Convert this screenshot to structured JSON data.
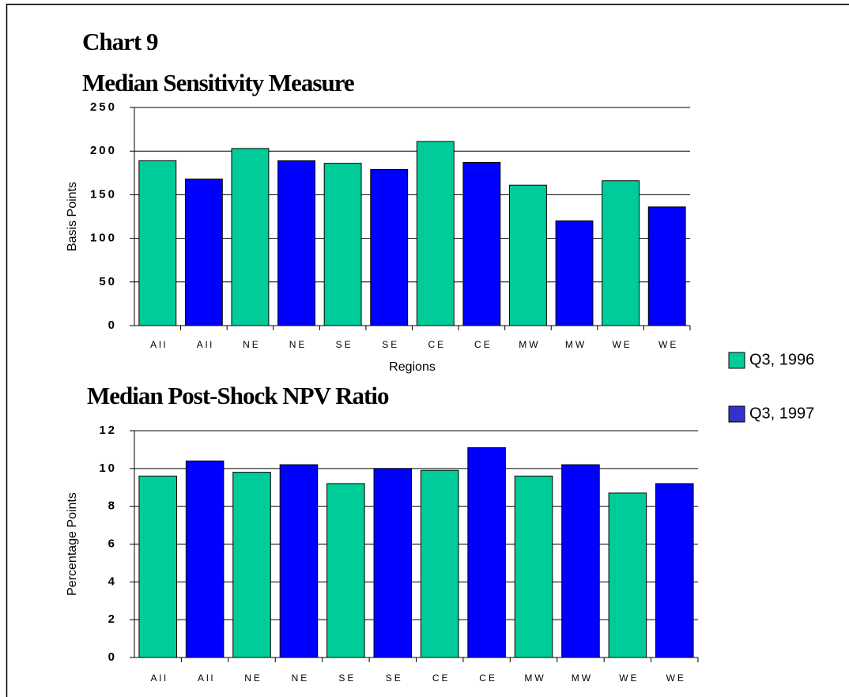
{
  "title": "Chart 9",
  "legend": [
    {
      "name": "Q3, 1996",
      "color": "#00cc99"
    },
    {
      "name": "Q3, 1997",
      "color": "#3333cc"
    }
  ],
  "chart_data": [
    {
      "type": "bar",
      "title": "Median Sensitivity Measure",
      "x_label": "Regions",
      "y_label": "Basis Points",
      "categories": [
        "All",
        "All",
        "NE",
        "NE",
        "SE",
        "SE",
        "CE",
        "CE",
        "MW",
        "MW",
        "WE",
        "WE"
      ],
      "values": [
        189,
        168,
        203,
        189,
        186,
        179,
        211,
        187,
        161,
        120,
        166,
        136
      ],
      "colors": [
        "#00cc99",
        "#0000ff",
        "#00cc99",
        "#0000ff",
        "#00cc99",
        "#0000ff",
        "#00cc99",
        "#0000ff",
        "#00cc99",
        "#0000ff",
        "#00cc99",
        "#0000ff"
      ],
      "ylim": [
        0,
        250
      ],
      "yticks": [
        0,
        50,
        100,
        150,
        200,
        250
      ],
      "grid": true
    },
    {
      "type": "bar",
      "title": "Median Post-Shock NPV Ratio",
      "y_label": "Percentage Points",
      "categories": [
        "All",
        "All",
        "NE",
        "NE",
        "SE",
        "SE",
        "CE",
        "CE",
        "MW",
        "MW",
        "WE",
        "WE"
      ],
      "values": [
        9.6,
        10.4,
        9.8,
        10.2,
        9.2,
        10.0,
        9.9,
        11.1,
        9.6,
        10.2,
        8.7,
        9.2
      ],
      "colors": [
        "#00cc99",
        "#0000ff",
        "#00cc99",
        "#0000ff",
        "#00cc99",
        "#0000ff",
        "#00cc99",
        "#0000ff",
        "#00cc99",
        "#0000ff",
        "#00cc99",
        "#0000ff"
      ],
      "ylim": [
        0,
        12
      ],
      "yticks": [
        0,
        2,
        4,
        6,
        8,
        10,
        12
      ],
      "grid": true
    }
  ]
}
